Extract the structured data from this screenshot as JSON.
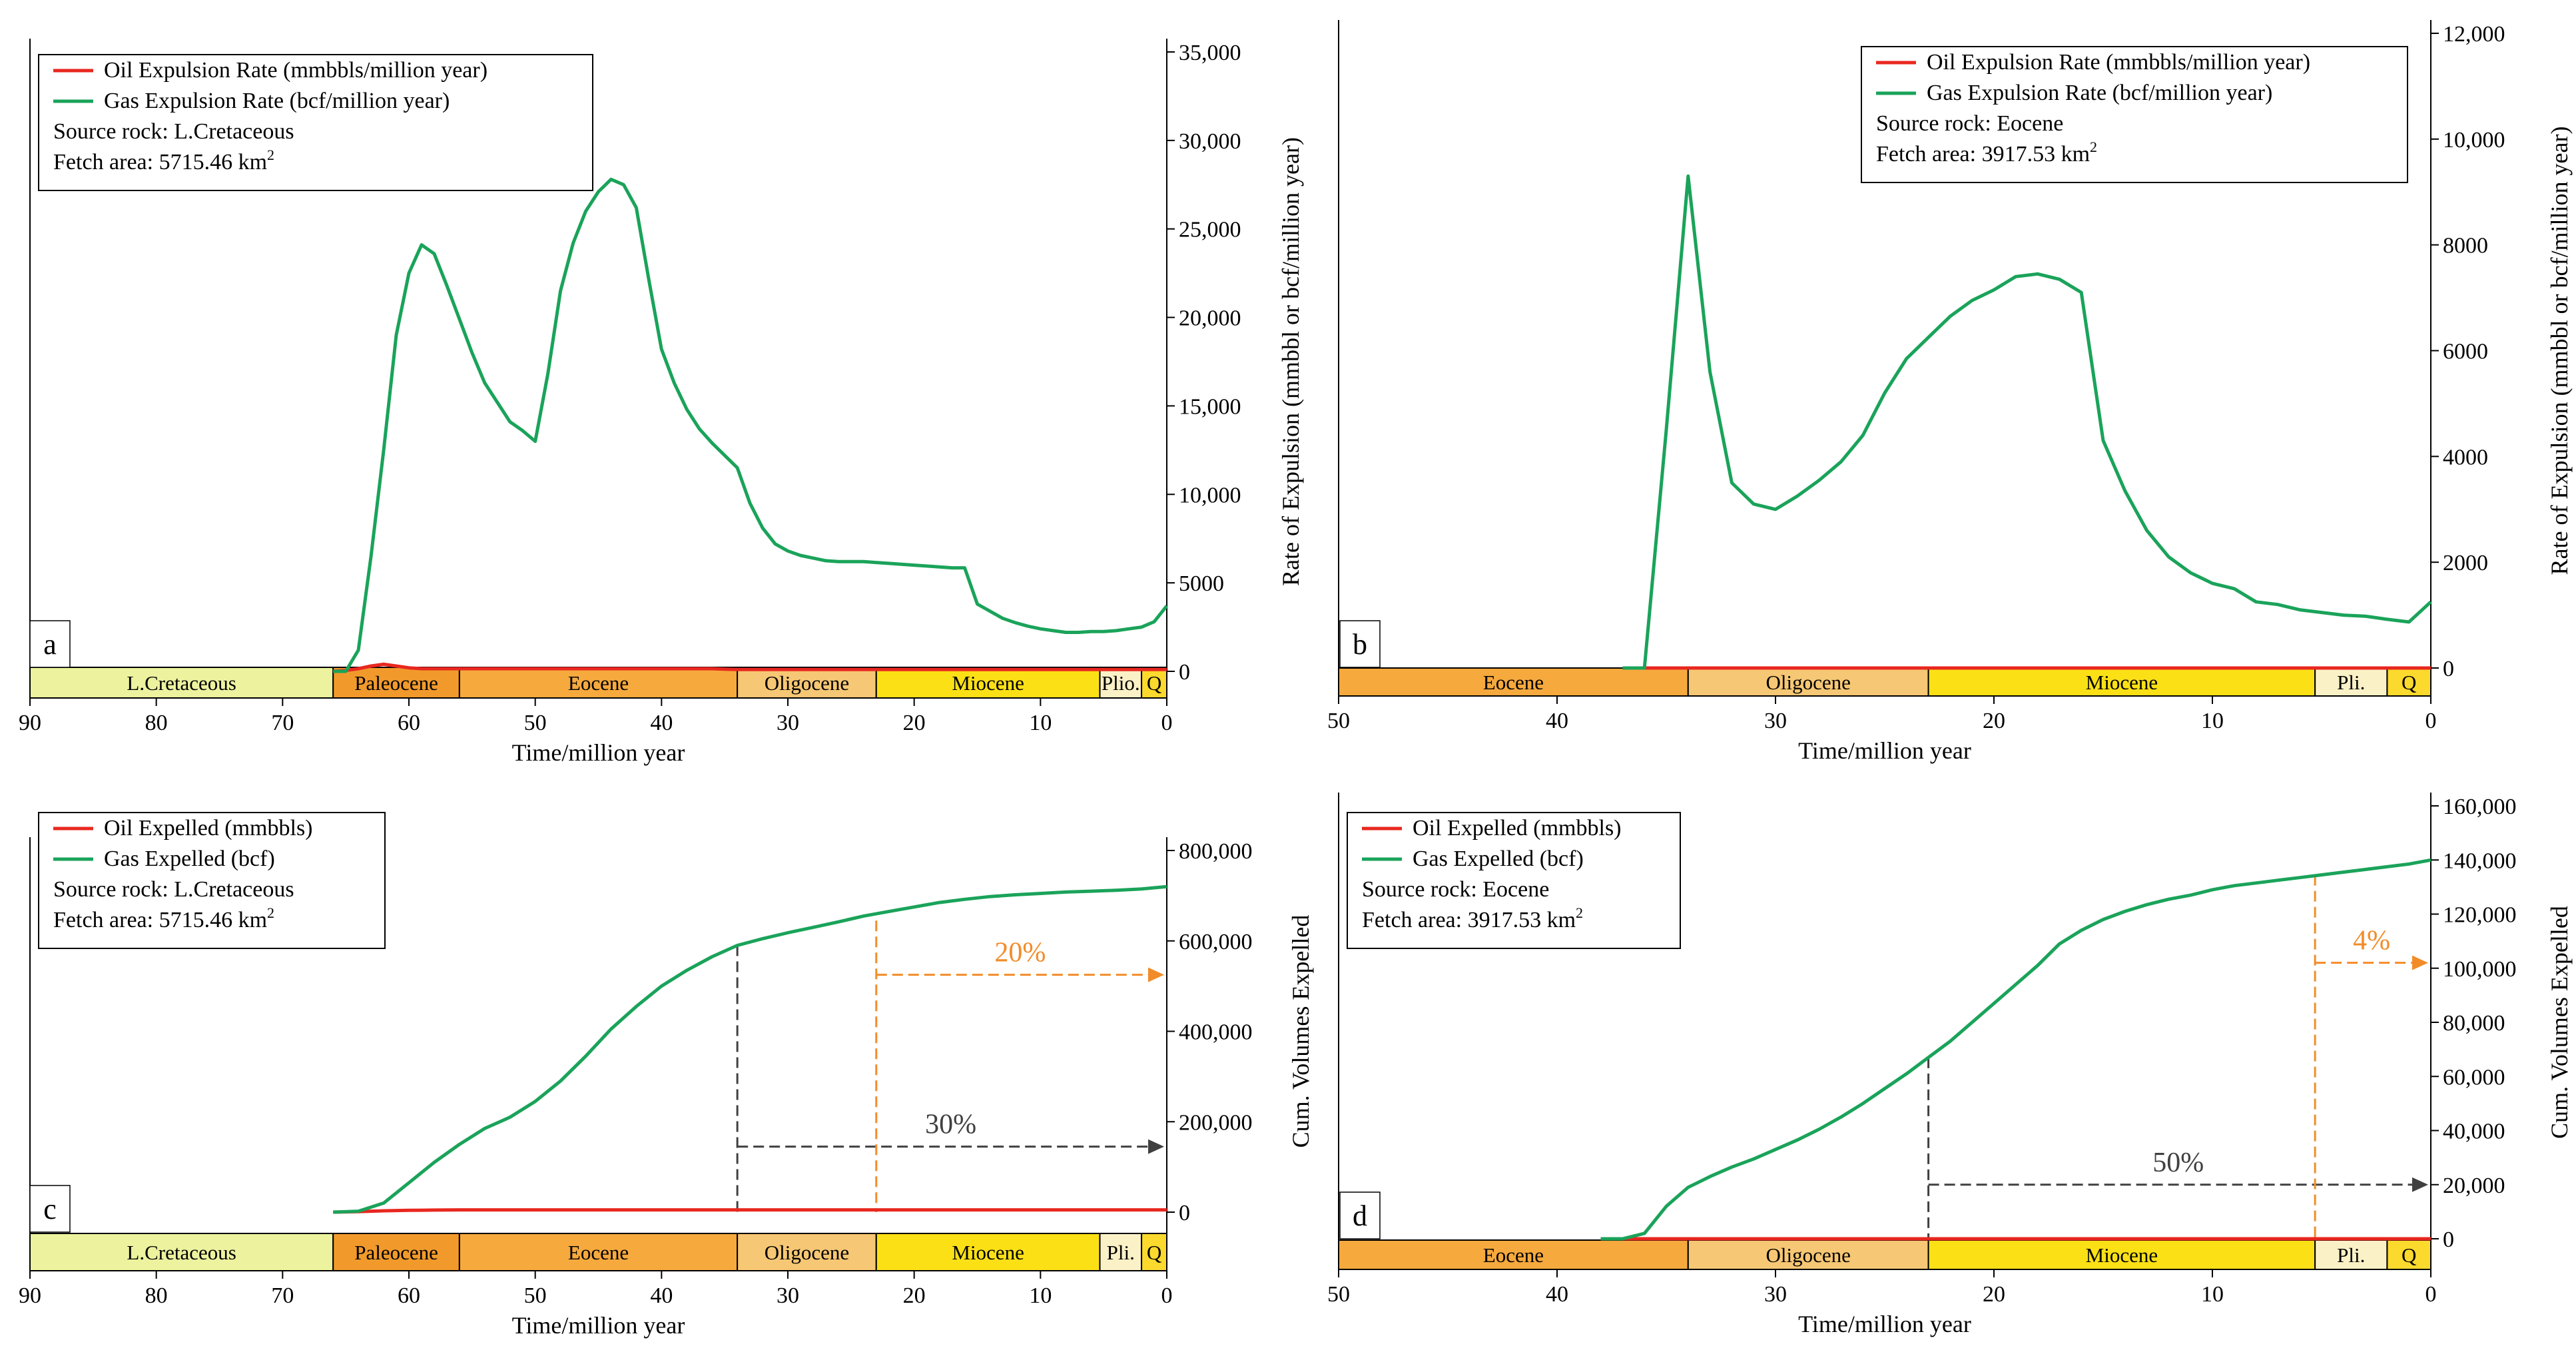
{
  "chart_data": [
    {
      "id": "a",
      "type": "line",
      "panel_label": "a",
      "x": [
        66,
        65,
        64,
        63,
        62,
        61,
        60,
        59,
        58,
        57,
        56,
        55,
        54,
        53,
        52,
        51,
        50,
        49,
        48,
        47,
        46,
        45,
        44,
        43,
        42,
        41,
        40,
        39,
        38,
        37,
        36,
        35,
        34,
        33,
        32,
        31,
        30,
        29,
        28,
        27,
        26,
        25,
        24,
        23,
        22,
        21,
        20,
        19,
        18,
        17,
        16,
        15,
        14,
        13,
        12,
        11,
        10,
        9,
        8,
        7,
        6,
        5,
        4,
        3,
        2,
        1,
        0
      ],
      "series": [
        {
          "name": "Oil Expulsion Rate (mmbbls/million year)",
          "color": "#e8271f",
          "values": [
            0,
            50,
            150,
            300,
            400,
            300,
            200,
            150,
            150,
            150,
            150,
            150,
            150,
            150,
            150,
            150,
            150,
            150,
            150,
            150,
            150,
            150,
            150,
            150,
            150,
            150,
            150,
            150,
            150,
            150,
            150,
            120,
            100,
            100,
            100,
            100,
            100,
            100,
            100,
            100,
            100,
            100,
            100,
            100,
            100,
            100,
            100,
            100,
            100,
            100,
            100,
            100,
            100,
            100,
            100,
            100,
            100,
            100,
            100,
            100,
            100,
            100,
            100,
            100,
            100,
            100,
            100
          ]
        },
        {
          "name": "Gas Expulsion Rate (bcf/million year)",
          "color": "#1aa35a",
          "values": [
            0,
            0,
            1200,
            6500,
            12500,
            19000,
            22500,
            24100,
            23600,
            21800,
            19900,
            18000,
            16300,
            15200,
            14100,
            13600,
            13000,
            16800,
            21500,
            24200,
            26000,
            27100,
            27800,
            27500,
            26200,
            22100,
            18200,
            16300,
            14800,
            13700,
            12900,
            12200,
            11500,
            9500,
            8100,
            7200,
            6800,
            6550,
            6400,
            6250,
            6200,
            6200,
            6200,
            6150,
            6100,
            6050,
            6000,
            5950,
            5900,
            5850,
            5850,
            3800,
            3400,
            3000,
            2750,
            2550,
            2400,
            2300,
            2200,
            2200,
            2250,
            2250,
            2300,
            2400,
            2500,
            2800,
            3700
          ]
        }
      ],
      "legend": [
        "Oil Expulsion Rate (mmbbls/million year)",
        "Gas Expulsion Rate (bcf/million year)"
      ],
      "source_rock": "Source rock: L.Cretaceous",
      "fetch_area": "Fetch area: 5715.46 km",
      "fetch_sup": "2",
      "xlim": [
        90,
        0
      ],
      "xticks": [
        "90",
        "80",
        "70",
        "60",
        "50",
        "40",
        "30",
        "20",
        "10",
        "0"
      ],
      "ylim": [
        0,
        35000
      ],
      "yticks": [
        "0",
        "5000",
        "10,000",
        "15,000",
        "20,000",
        "25,000",
        "30,000",
        "35,000"
      ],
      "xlabel": "Time/million year",
      "ylabel": "Rate of Expulsion (mmbbl or bcf/million year)",
      "eras": [
        {
          "name": "L.Cretaceous",
          "start": 90,
          "end": 66,
          "color": "#ecf29e"
        },
        {
          "name": "Paleocene",
          "start": 66,
          "end": 56,
          "color": "#f19a2b"
        },
        {
          "name": "Eocene",
          "start": 56,
          "end": 34,
          "color": "#f6a93d"
        },
        {
          "name": "Oligocene",
          "start": 34,
          "end": 23,
          "color": "#f6c774"
        },
        {
          "name": "Miocene",
          "start": 23,
          "end": 5.3,
          "color": "#fce016"
        },
        {
          "name": "Plio.",
          "start": 5.3,
          "end": 2,
          "color": "#fbf1c6"
        },
        {
          "name": "Q",
          "start": 2,
          "end": 0,
          "color": "#fbd92d"
        }
      ]
    },
    {
      "id": "b",
      "type": "line",
      "panel_label": "b",
      "x": [
        37,
        36,
        35,
        34,
        33,
        32,
        31,
        30,
        29,
        28,
        27,
        26,
        25,
        24,
        23,
        22,
        21,
        20,
        19,
        18,
        17,
        16,
        15,
        14,
        13,
        12,
        11,
        10,
        9,
        8,
        7,
        6,
        5,
        4,
        3,
        2,
        1,
        0
      ],
      "series": [
        {
          "name": "Oil Expulsion Rate (mmbbls/million year)",
          "color": "#e8271f",
          "values": [
            0,
            0,
            0,
            0,
            0,
            0,
            0,
            0,
            0,
            0,
            0,
            0,
            0,
            0,
            0,
            0,
            0,
            0,
            0,
            0,
            0,
            0,
            0,
            0,
            0,
            0,
            0,
            0,
            0,
            0,
            0,
            0,
            0,
            0,
            0,
            0,
            0,
            0
          ]
        },
        {
          "name": "Gas Expulsion Rate (bcf/million year)",
          "color": "#1aa35a",
          "values": [
            0,
            0,
            4500,
            9300,
            5600,
            3500,
            3100,
            3000,
            3250,
            3550,
            3900,
            4400,
            5200,
            5850,
            6250,
            6650,
            6950,
            7150,
            7400,
            7450,
            7350,
            7100,
            4300,
            3350,
            2600,
            2100,
            1800,
            1600,
            1500,
            1250,
            1200,
            1100,
            1050,
            1000,
            980,
            920,
            870,
            1250
          ]
        }
      ],
      "legend": [
        "Oil Expulsion Rate (mmbbls/million year)",
        "Gas Expulsion Rate (bcf/million year)"
      ],
      "source_rock": "Source rock: Eocene",
      "fetch_area": "Fetch area: 3917.53 km",
      "fetch_sup": "2",
      "xlim": [
        50,
        0
      ],
      "xticks": [
        "50",
        "40",
        "30",
        "20",
        "10",
        "0"
      ],
      "ylim": [
        0,
        12000
      ],
      "yticks": [
        "0",
        "2000",
        "4000",
        "6000",
        "8000",
        "10,000",
        "12,000"
      ],
      "xlabel": "Time/million year",
      "ylabel": "Rate of Expulsion (mmbbl or bcf/million year)",
      "eras": [
        {
          "name": "Eocene",
          "start": 50,
          "end": 34,
          "color": "#f6a93d"
        },
        {
          "name": "Oligocene",
          "start": 34,
          "end": 23,
          "color": "#f6c774"
        },
        {
          "name": "Miocene",
          "start": 23,
          "end": 5.3,
          "color": "#fce016"
        },
        {
          "name": "Pli.",
          "start": 5.3,
          "end": 2,
          "color": "#fbf1c6"
        },
        {
          "name": "Q",
          "start": 2,
          "end": 0,
          "color": "#fbd92d"
        }
      ]
    },
    {
      "id": "c",
      "type": "line",
      "panel_label": "c",
      "x": [
        66,
        64,
        62,
        60,
        58,
        56,
        54,
        52,
        50,
        48,
        46,
        44,
        42,
        40,
        38,
        36,
        34,
        32,
        30,
        28,
        26,
        24,
        22,
        20,
        18,
        16,
        14,
        12,
        10,
        8,
        6,
        4,
        2,
        0
      ],
      "series": [
        {
          "name": "Oil Expelled (mmbbls)",
          "color": "#e8271f",
          "values": [
            0,
            1000,
            3000,
            4000,
            4500,
            5000,
            5000,
            5000,
            5000,
            5000,
            5000,
            5000,
            5000,
            5000,
            5000,
            5000,
            5000,
            5000,
            5000,
            5000,
            5000,
            5000,
            5000,
            5000,
            5000,
            5000,
            5000,
            5000,
            5000,
            5000,
            5000,
            5000,
            5000,
            5000
          ]
        },
        {
          "name": "Gas Expelled (bcf)",
          "color": "#1aa35a",
          "values": [
            0,
            2000,
            20000,
            65000,
            110000,
            150000,
            185000,
            210000,
            245000,
            290000,
            345000,
            405000,
            455000,
            500000,
            535000,
            565000,
            590000,
            605000,
            618000,
            630000,
            642000,
            655000,
            665000,
            675000,
            685000,
            692000,
            698000,
            702000,
            705000,
            708000,
            710000,
            712000,
            715000,
            720000
          ]
        }
      ],
      "legend": [
        "Oil Expelled (mmbbls)",
        "Gas Expelled (bcf)"
      ],
      "source_rock": "Source rock: L.Cretaceous",
      "fetch_area": "Fetch area: 5715.46 km",
      "fetch_sup": "2",
      "xlim": [
        90,
        0
      ],
      "xticks": [
        "90",
        "80",
        "70",
        "60",
        "50",
        "40",
        "30",
        "20",
        "10",
        "0"
      ],
      "ylim": [
        0,
        800000
      ],
      "yticks": [
        "0",
        "200,000",
        "400,000",
        "600,000",
        "800,000"
      ],
      "xlabel": "Time/million year",
      "ylabel": "Cum. Volumes Expelled",
      "annotations": [
        {
          "text": "30%",
          "color": "#404040",
          "x_from": 34,
          "x_to": 0,
          "y": 145000,
          "vline_top": 590000
        },
        {
          "text": "20%",
          "color": "#f28c28",
          "x_from": 23,
          "x_to": 0,
          "y": 525000,
          "vline_top": 645000
        }
      ],
      "eras": [
        {
          "name": "L.Cretaceous",
          "start": 90,
          "end": 66,
          "color": "#ecf29e"
        },
        {
          "name": "Paleocene",
          "start": 66,
          "end": 56,
          "color": "#f19a2b"
        },
        {
          "name": "Eocene",
          "start": 56,
          "end": 34,
          "color": "#f6a93d"
        },
        {
          "name": "Oligocene",
          "start": 34,
          "end": 23,
          "color": "#f6c774"
        },
        {
          "name": "Miocene",
          "start": 23,
          "end": 5.3,
          "color": "#fce016"
        },
        {
          "name": "Pli.",
          "start": 5.3,
          "end": 2,
          "color": "#fbf1c6"
        },
        {
          "name": "Q",
          "start": 2,
          "end": 0,
          "color": "#fbd92d"
        }
      ]
    },
    {
      "id": "d",
      "type": "line",
      "panel_label": "d",
      "x": [
        38,
        37,
        36,
        35,
        34,
        33,
        32,
        31,
        30,
        29,
        28,
        27,
        26,
        25,
        24,
        23,
        22,
        21,
        20,
        19,
        18,
        17,
        16,
        15,
        14,
        13,
        12,
        11,
        10,
        9,
        8,
        7,
        6,
        5,
        4,
        3,
        2,
        1,
        0
      ],
      "series": [
        {
          "name": "Oil Expelled (mmbbls)",
          "color": "#e8271f",
          "values": [
            0,
            0,
            0,
            0,
            0,
            0,
            0,
            0,
            0,
            0,
            0,
            0,
            0,
            0,
            0,
            0,
            0,
            0,
            0,
            0,
            0,
            0,
            0,
            0,
            0,
            0,
            0,
            0,
            0,
            0,
            0,
            0,
            0,
            0,
            0,
            0,
            0,
            0,
            0
          ]
        },
        {
          "name": "Gas Expelled (bcf)",
          "color": "#1aa35a",
          "values": [
            0,
            0,
            2000,
            12000,
            19000,
            23000,
            26500,
            29500,
            33000,
            36500,
            40500,
            45000,
            50000,
            55500,
            61000,
            67000,
            73000,
            80000,
            87000,
            94000,
            101000,
            109000,
            114000,
            118000,
            121000,
            123500,
            125500,
            127000,
            129000,
            130500,
            131500,
            132500,
            133500,
            134500,
            135500,
            136500,
            137500,
            138500,
            140000
          ]
        }
      ],
      "legend": [
        "Oil Expelled (mmbbls)",
        "Gas Expelled (bcf)"
      ],
      "source_rock": "Source rock: Eocene",
      "fetch_area": "Fetch area: 3917.53 km",
      "fetch_sup": "2",
      "xlim": [
        50,
        0
      ],
      "xticks": [
        "50",
        "40",
        "30",
        "20",
        "10",
        "0"
      ],
      "ylim": [
        0,
        160000
      ],
      "yticks": [
        "0",
        "20,000",
        "40,000",
        "60,000",
        "80,000",
        "100,000",
        "120,000",
        "140,000",
        "160,000"
      ],
      "xlabel": "Time/million year",
      "ylabel": "Cum. Volumes Expelled",
      "annotations": [
        {
          "text": "50%",
          "color": "#404040",
          "x_from": 23,
          "x_to": 0,
          "y": 20000,
          "vline_top": 67000
        },
        {
          "text": "4%",
          "color": "#f28c28",
          "x_from": 5.3,
          "x_to": 0,
          "y": 102000,
          "vline_top": 134500
        }
      ],
      "eras": [
        {
          "name": "Eocene",
          "start": 50,
          "end": 34,
          "color": "#f6a93d"
        },
        {
          "name": "Oligocene",
          "start": 34,
          "end": 23,
          "color": "#f6c774"
        },
        {
          "name": "Miocene",
          "start": 23,
          "end": 5.3,
          "color": "#fce016"
        },
        {
          "name": "Pli.",
          "start": 5.3,
          "end": 2,
          "color": "#fbf1c6"
        },
        {
          "name": "Q",
          "start": 2,
          "end": 0,
          "color": "#fbd92d"
        }
      ]
    }
  ]
}
